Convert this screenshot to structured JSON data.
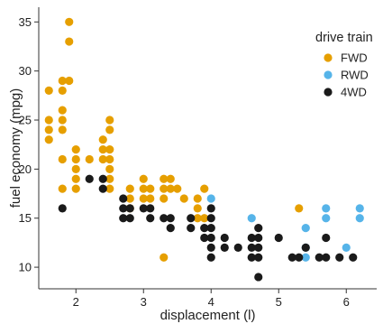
{
  "chart_data": {
    "type": "scatter",
    "xlabel": "displacement (l)",
    "ylabel": "fuel economy (mpg)",
    "xlim": [
      1.45,
      6.45
    ],
    "ylim": [
      7.8,
      36.5
    ],
    "xticks": [
      2,
      3,
      4,
      5,
      6
    ],
    "yticks": [
      10,
      15,
      20,
      25,
      30,
      35
    ],
    "grid": false,
    "legend": {
      "title": "drive train",
      "placement": "top-right"
    },
    "series": [
      {
        "name": "FWD",
        "color": "#E69F00",
        "points": [
          [
            1.6,
            28
          ],
          [
            1.6,
            25
          ],
          [
            1.6,
            24
          ],
          [
            1.6,
            23
          ],
          [
            1.8,
            29
          ],
          [
            1.8,
            28
          ],
          [
            1.8,
            26
          ],
          [
            1.8,
            25
          ],
          [
            1.8,
            24
          ],
          [
            1.8,
            21
          ],
          [
            1.8,
            18
          ],
          [
            1.9,
            35
          ],
          [
            1.9,
            33
          ],
          [
            1.9,
            29
          ],
          [
            2.0,
            22
          ],
          [
            2.0,
            21
          ],
          [
            2.0,
            20
          ],
          [
            2.0,
            19
          ],
          [
            2.0,
            18
          ],
          [
            2.2,
            21
          ],
          [
            2.4,
            23
          ],
          [
            2.4,
            22
          ],
          [
            2.4,
            21
          ],
          [
            2.5,
            25
          ],
          [
            2.5,
            24
          ],
          [
            2.5,
            22
          ],
          [
            2.5,
            21
          ],
          [
            2.5,
            20
          ],
          [
            2.5,
            19
          ],
          [
            2.5,
            18
          ],
          [
            2.8,
            18
          ],
          [
            2.8,
            17
          ],
          [
            2.8,
            16
          ],
          [
            3.0,
            19
          ],
          [
            3.0,
            18
          ],
          [
            3.0,
            17
          ],
          [
            3.1,
            18
          ],
          [
            3.1,
            17
          ],
          [
            3.3,
            19
          ],
          [
            3.3,
            18
          ],
          [
            3.3,
            17
          ],
          [
            3.3,
            11
          ],
          [
            3.4,
            19
          ],
          [
            3.4,
            18
          ],
          [
            3.5,
            18
          ],
          [
            3.6,
            17
          ],
          [
            3.8,
            17
          ],
          [
            3.8,
            16
          ],
          [
            3.8,
            15
          ],
          [
            3.9,
            18
          ],
          [
            3.9,
            15
          ],
          [
            5.3,
            16
          ]
        ]
      },
      {
        "name": "RWD",
        "color": "#56B4E9",
        "points": [
          [
            4.0,
            17
          ],
          [
            4.6,
            15
          ],
          [
            5.4,
            14
          ],
          [
            5.4,
            12
          ],
          [
            5.4,
            11
          ],
          [
            5.7,
            16
          ],
          [
            5.7,
            15
          ],
          [
            6.0,
            12
          ],
          [
            6.2,
            16
          ],
          [
            6.2,
            15
          ]
        ]
      },
      {
        "name": "4WD",
        "color": "#1a1a1a",
        "points": [
          [
            1.8,
            16
          ],
          [
            2.2,
            19
          ],
          [
            2.4,
            19
          ],
          [
            2.4,
            18
          ],
          [
            2.7,
            17
          ],
          [
            2.7,
            16
          ],
          [
            2.7,
            15
          ],
          [
            2.8,
            16
          ],
          [
            2.8,
            15
          ],
          [
            3.0,
            16
          ],
          [
            3.1,
            16
          ],
          [
            3.1,
            15
          ],
          [
            3.3,
            15
          ],
          [
            3.4,
            15
          ],
          [
            3.4,
            14
          ],
          [
            3.7,
            15
          ],
          [
            3.7,
            14
          ],
          [
            3.9,
            14
          ],
          [
            3.9,
            13
          ],
          [
            4.0,
            16
          ],
          [
            4.0,
            15
          ],
          [
            4.0,
            14
          ],
          [
            4.0,
            13
          ],
          [
            4.0,
            12
          ],
          [
            4.0,
            11
          ],
          [
            4.2,
            13
          ],
          [
            4.2,
            12
          ],
          [
            4.4,
            12
          ],
          [
            4.6,
            13
          ],
          [
            4.6,
            12
          ],
          [
            4.6,
            11
          ],
          [
            4.7,
            14
          ],
          [
            4.7,
            13
          ],
          [
            4.7,
            12
          ],
          [
            4.7,
            11
          ],
          [
            4.7,
            9
          ],
          [
            5.0,
            13
          ],
          [
            5.2,
            11
          ],
          [
            5.3,
            11
          ],
          [
            5.4,
            12
          ],
          [
            5.6,
            11
          ],
          [
            5.7,
            13
          ],
          [
            5.7,
            11
          ],
          [
            5.9,
            11
          ],
          [
            6.1,
            11
          ]
        ]
      }
    ]
  }
}
